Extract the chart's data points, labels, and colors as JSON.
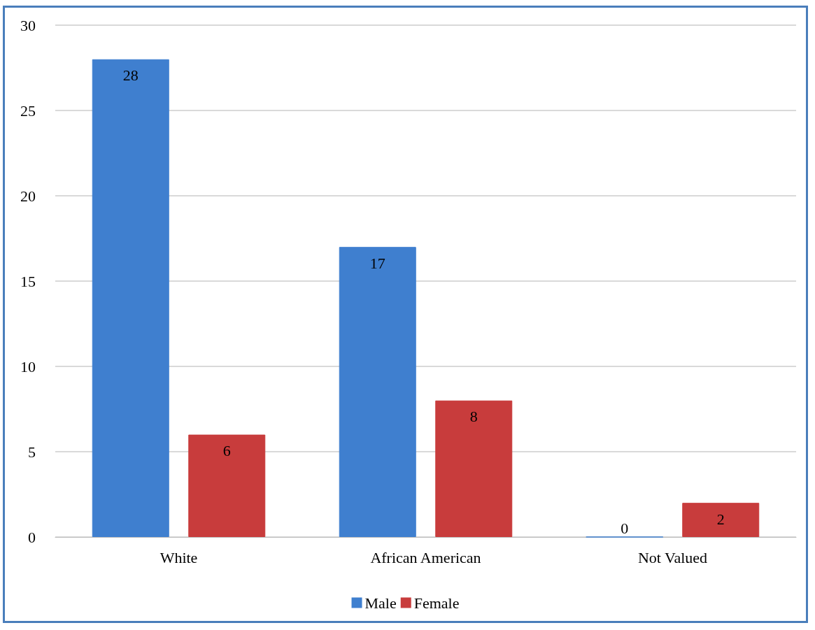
{
  "chart_data": {
    "type": "bar",
    "categories": [
      "White",
      "African American",
      "Not Valued"
    ],
    "series": [
      {
        "name": "Male",
        "color": "#3f7fcf",
        "values": [
          28,
          17,
          0
        ]
      },
      {
        "name": "Female",
        "color": "#c83c3c",
        "values": [
          6,
          8,
          2
        ]
      }
    ],
    "ylim": [
      0,
      30
    ],
    "yticks": [
      0,
      5,
      10,
      15,
      20,
      25,
      30
    ],
    "grid": "y",
    "legend": "bottom",
    "data_labels": true
  }
}
